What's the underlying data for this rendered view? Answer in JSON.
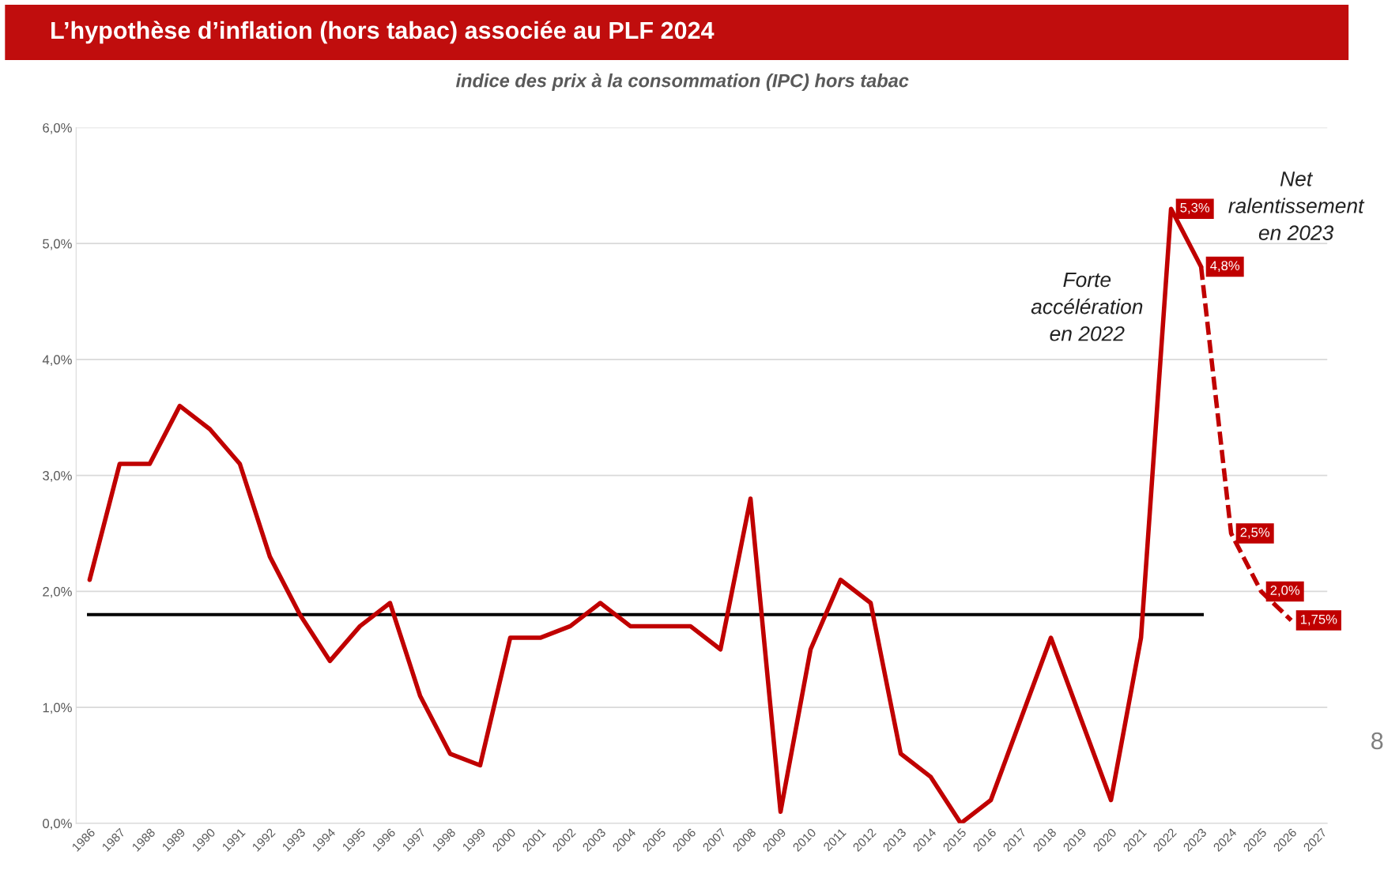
{
  "chart_data": {
    "type": "line",
    "title": "L’hypothèse d’inflation (hors tabac) associée au PLF 2024",
    "subtitle": "indice des prix à la consommation (IPC) hors tabac",
    "categories": [
      "1986",
      "1987",
      "1988",
      "1989",
      "1990",
      "1991",
      "1992",
      "1993",
      "1994",
      "1995",
      "1996",
      "1997",
      "1998",
      "1999",
      "2000",
      "2001",
      "2002",
      "2003",
      "2004",
      "2005",
      "2006",
      "2007",
      "2008",
      "2009",
      "2010",
      "2011",
      "2012",
      "2013",
      "2014",
      "2015",
      "2016",
      "2017",
      "2018",
      "2019",
      "2020",
      "2021",
      "2022",
      "2023",
      "2024",
      "2025",
      "2026",
      "2027"
    ],
    "series": [
      {
        "color": "#c00000",
        "line_style": "solid",
        "values": [
          2.1,
          3.1,
          3.1,
          3.6,
          3.4,
          3.1,
          2.3,
          1.8,
          1.4,
          1.7,
          1.9,
          1.1,
          0.6,
          0.5,
          1.6,
          1.6,
          1.7,
          1.9,
          1.7,
          1.7,
          1.7,
          1.5,
          2.8,
          0.1,
          1.5,
          2.1,
          1.9,
          0.6,
          0.4,
          0.0,
          0.2,
          0.9,
          1.6,
          0.9,
          0.2,
          1.6,
          5.3,
          4.8,
          null,
          null,
          null,
          null
        ],
        "value_labels": [
          null,
          null,
          null,
          null,
          null,
          null,
          null,
          null,
          null,
          null,
          null,
          null,
          null,
          null,
          null,
          null,
          null,
          null,
          null,
          null,
          null,
          null,
          null,
          null,
          null,
          null,
          null,
          null,
          null,
          null,
          null,
          null,
          null,
          null,
          null,
          null,
          "5,3%",
          null,
          null,
          null,
          null,
          null
        ]
      },
      {
        "color": "#c00000",
        "line_style": "dashed",
        "values": [
          null,
          null,
          null,
          null,
          null,
          null,
          null,
          null,
          null,
          null,
          null,
          null,
          null,
          null,
          null,
          null,
          null,
          null,
          null,
          null,
          null,
          null,
          null,
          null,
          null,
          null,
          null,
          null,
          null,
          null,
          null,
          null,
          null,
          null,
          null,
          null,
          null,
          4.8,
          2.5,
          2.0,
          1.75,
          null
        ],
        "value_labels": [
          null,
          null,
          null,
          null,
          null,
          null,
          null,
          null,
          null,
          null,
          null,
          null,
          null,
          null,
          null,
          null,
          null,
          null,
          null,
          null,
          null,
          null,
          null,
          null,
          null,
          null,
          null,
          null,
          null,
          null,
          null,
          null,
          null,
          null,
          null,
          null,
          null,
          "4,8%",
          "2,5%",
          "2,0%",
          "1,75%",
          null
        ]
      }
    ],
    "ref_lines": [
      {
        "axis": "y",
        "value": 1.8,
        "color": "#000000"
      }
    ],
    "ylim": [
      0,
      6
    ],
    "yticks": [
      {
        "value": 0,
        "label": "0,0%"
      },
      {
        "value": 1,
        "label": "1,0%"
      },
      {
        "value": 2,
        "label": "2,0%"
      },
      {
        "value": 3,
        "label": "3,0%"
      },
      {
        "value": 4,
        "label": "4,0%"
      },
      {
        "value": 5,
        "label": "5,0%"
      },
      {
        "value": 6,
        "label": "6,0%"
      }
    ],
    "grid": "y",
    "legend": false,
    "marker": "none",
    "annotations": [
      "Forte\naccélération\nen 2022",
      "Net\nralentissement\nen 2023",
      "8"
    ]
  }
}
